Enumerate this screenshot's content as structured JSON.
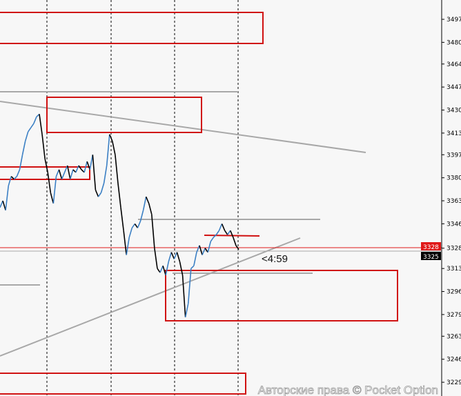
{
  "chart_data": {
    "type": "line",
    "title": "",
    "xlabel": "",
    "ylabel": "",
    "ylim": [
      3222,
      3511
    ],
    "y_ticks": [
      "3497",
      "3480",
      "3464",
      "3447",
      "3430",
      "3413",
      "3397",
      "3380",
      "3363",
      "3346",
      "3328",
      "3313",
      "3296",
      "3279",
      "3263",
      "3246",
      "3229"
    ],
    "y_tick_values": [
      3497,
      3480,
      3464,
      3447,
      3430,
      3413,
      3397,
      3380,
      3363,
      3346,
      3328,
      3313,
      3296,
      3279,
      3263,
      3246,
      3229
    ],
    "grid": false,
    "series": [
      {
        "values": [
          3358,
          3363,
          3356,
          3374,
          3381,
          3379,
          3381,
          3386,
          3397,
          3407,
          3414,
          3417,
          3420,
          3425,
          3427,
          3412,
          3394,
          3384,
          3369,
          3361,
          3381,
          3386,
          3379,
          3384,
          3389,
          3379,
          3386,
          3384,
          3389,
          3386,
          3384,
          3392,
          3386,
          3397,
          3371,
          3366,
          3369,
          3376,
          3389,
          3412,
          3407,
          3397,
          3376,
          3358,
          3341,
          3323,
          3336,
          3343,
          3346,
          3343,
          3348,
          3356,
          3366,
          3361,
          3353,
          3328,
          3313,
          3310,
          3315,
          3308,
          3318,
          3325,
          3320,
          3325,
          3318,
          3308,
          3277,
          3287,
          3313,
          3315,
          3325,
          3330,
          3323,
          3328,
          3325,
          3333,
          3336,
          3338,
          3341,
          3346,
          3341,
          3338,
          3341,
          3336,
          3330,
          3327
        ]
      }
    ],
    "current_price_label": "3328",
    "bid_price_label": "3325",
    "candle_timer": "<4:59",
    "colors": {
      "line_up": "#3a7fc4",
      "line_down": "#000000",
      "zones": "#d01010",
      "trendlines": "#a8a8a8",
      "price_tag": "#e01818"
    }
  },
  "watermark": "Авторские права © Pocket Option"
}
